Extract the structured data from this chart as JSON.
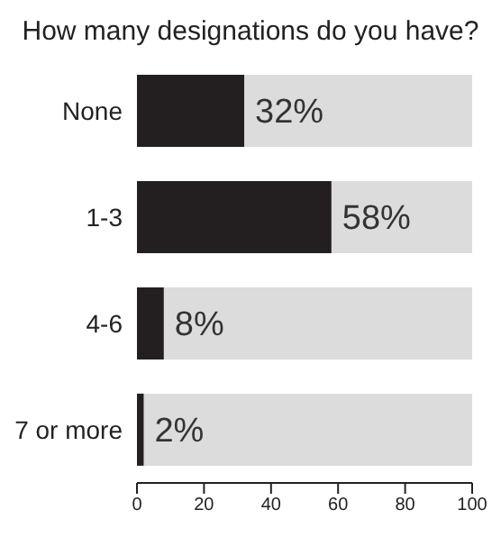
{
  "chart_data": {
    "type": "bar",
    "orientation": "horizontal",
    "title": "How many designations do you have?",
    "categories": [
      "None",
      "1-3",
      "4-6",
      "7 or more"
    ],
    "values": [
      32,
      58,
      8,
      2
    ],
    "value_labels": [
      "32%",
      "58%",
      "8%",
      "2%"
    ],
    "color": "#231f20",
    "xlim": [
      0,
      100
    ],
    "xticks": [
      0,
      20,
      40,
      60,
      80,
      100
    ],
    "grid": false,
    "legend": false
  }
}
